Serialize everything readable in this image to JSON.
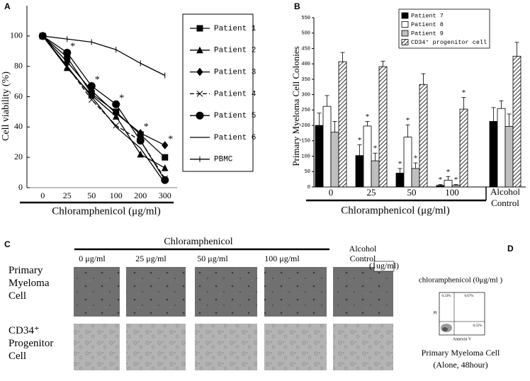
{
  "chart_data": [
    {
      "type": "line",
      "panel_label": "A",
      "y_label": "Cell viability (%)",
      "x_label": "Chloramphenicol (μg/ml)",
      "categories": [
        "0",
        "25",
        "50",
        "100",
        "200",
        "300"
      ],
      "ylim": [
        0,
        120
      ],
      "yticks": [
        0,
        20,
        40,
        60,
        80,
        100
      ],
      "series": [
        {
          "name": "Patient 1",
          "color": "#000000",
          "marker": "square",
          "dashed": false,
          "values": [
            100,
            86,
            62,
            50,
            35,
            20
          ]
        },
        {
          "name": "Patient 2",
          "color": "#000000",
          "marker": "triangle",
          "dashed": false,
          "values": [
            100,
            79,
            61,
            47,
            22,
            13
          ]
        },
        {
          "name": "Patient 3",
          "color": "#000000",
          "marker": "diamond",
          "dashed": false,
          "values": [
            100,
            83,
            64,
            49,
            36,
            28
          ]
        },
        {
          "name": "Patient 4",
          "color": "#000000",
          "marker": "x",
          "dashed": true,
          "values": [
            100,
            80,
            58,
            41,
            31,
            6
          ]
        },
        {
          "name": "Patient 5",
          "color": "#000000",
          "marker": "circle",
          "dashed": false,
          "values": [
            100,
            89,
            67,
            55,
            31,
            5
          ]
        },
        {
          "name": "Patient 6",
          "color": "#000000",
          "marker": "none",
          "dashed": false,
          "values": [
            100,
            80,
            60,
            40,
            26,
            3
          ]
        },
        {
          "name": "PBMC",
          "color": "#000000",
          "marker": "plus",
          "dashed": false,
          "values": [
            100,
            98,
            96,
            91,
            82,
            74
          ]
        }
      ],
      "significance": [
        null,
        "*",
        "*",
        "*",
        "*",
        "*"
      ]
    },
    {
      "type": "bar",
      "panel_label": "B",
      "y_label": "Primary Myeloma Cell Colonies",
      "x_label": "Chloramphenicol (μg/ml)",
      "categories": [
        "0",
        "25",
        "50",
        "100",
        "Alcohol Control"
      ],
      "ylim": [
        0,
        550
      ],
      "yticks": [
        0,
        50,
        100,
        150,
        200,
        250,
        300,
        350,
        400,
        450,
        500,
        550
      ],
      "series": [
        {
          "name": "Patient 7",
          "color": "#000000",
          "pattern": "solid",
          "values": [
            200,
            102,
            45,
            5,
            213
          ],
          "errors": [
            40,
            35,
            15,
            3,
            45
          ],
          "significance": [
            null,
            "*",
            "*",
            "*",
            null
          ]
        },
        {
          "name": "Patient 8",
          "color": "#ffffff",
          "pattern": "solid",
          "values": [
            262,
            198,
            162,
            22,
            255
          ],
          "errors": [
            35,
            15,
            40,
            12,
            25
          ],
          "significance": [
            null,
            "*",
            "*",
            "*",
            null
          ]
        },
        {
          "name": "Patient 9",
          "color": "#bfbfbf",
          "pattern": "solid",
          "values": [
            178,
            85,
            60,
            5,
            197
          ],
          "errors": [
            35,
            25,
            18,
            3,
            40
          ],
          "significance": [
            null,
            "*",
            "*",
            "*",
            null
          ]
        },
        {
          "name": "CD34⁺ progenitor cell",
          "color": "#000000",
          "pattern": "diagonal",
          "values": [
            407,
            391,
            333,
            253,
            425
          ],
          "errors": [
            30,
            18,
            35,
            38,
            45
          ],
          "significance": [
            null,
            null,
            null,
            "*",
            null
          ]
        }
      ]
    }
  ],
  "panel_c": {
    "label": "C",
    "group_label": "Chloramphenicol",
    "columns": [
      "0 μg/ml",
      "25 μg/ml",
      "50 μg/ml",
      "100 μg/ml"
    ],
    "control_label": "Alcohol Control",
    "control_dose": "(1ug/ml)",
    "rows": [
      "Primary Myeloma Cell",
      "CD34⁺ Progenitor Cell"
    ]
  },
  "panel_d": {
    "label": "D",
    "title": "chloramphenicol (0μg/ml )",
    "caption": [
      "Primary Myeloma Cell",
      "(Alone, 48hour)"
    ],
    "y_label": "PI",
    "x_label": "Annexin V",
    "quadrants": [
      "0.33%",
      "0.67%",
      "0.55%"
    ]
  }
}
